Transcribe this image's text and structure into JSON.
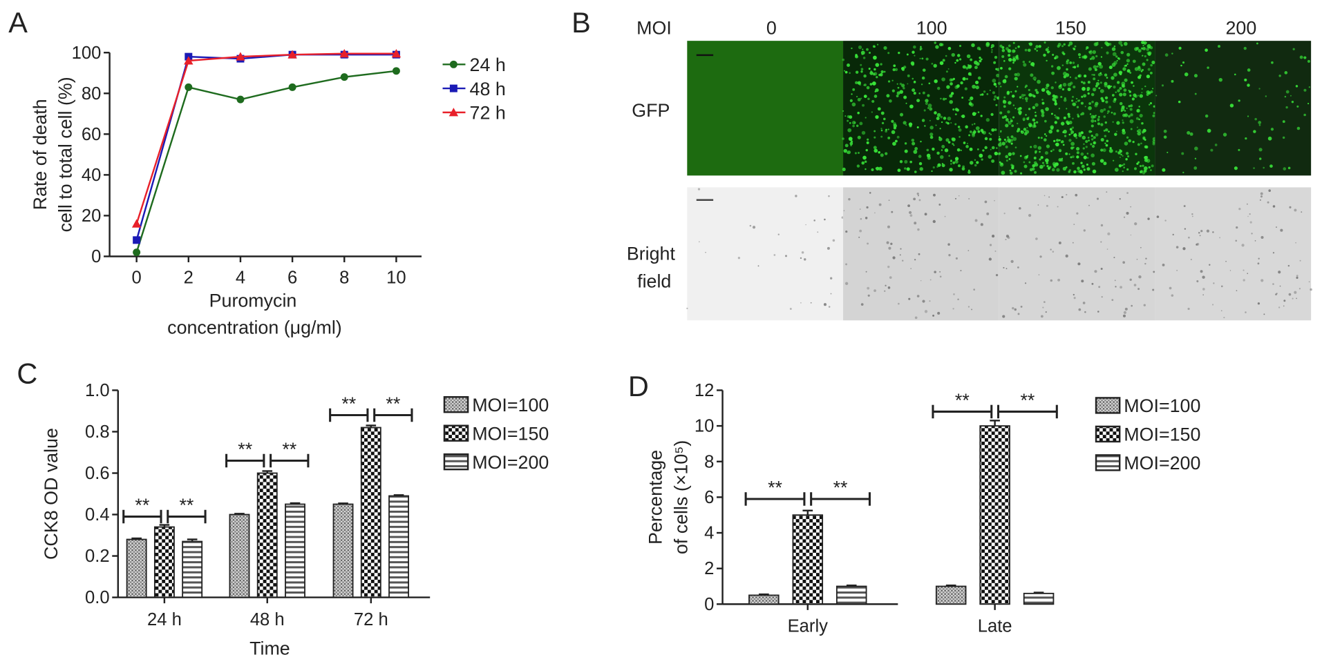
{
  "panel_labels": [
    "A",
    "B",
    "C",
    "D"
  ],
  "colors": {
    "24 h": "#1e6b1e",
    "48 h": "#1a1ab5",
    "72 h": "#e8202a",
    "gfp": "#39e639"
  },
  "panel_b": {
    "moi_label": "MOI",
    "columns": [
      "0",
      "100",
      "150",
      "200"
    ],
    "rows": [
      {
        "label_lines": [
          "GFP"
        ]
      },
      {
        "label_lines": [
          "Bright",
          "field"
        ]
      }
    ]
  },
  "chart_data": [
    {
      "type": "line",
      "panel": "A",
      "x": [
        0,
        2,
        4,
        6,
        8,
        10
      ],
      "xticks": [
        "0",
        "2",
        "4",
        "6",
        "8",
        "10"
      ],
      "yticks": [
        "0",
        "20",
        "40",
        "60",
        "80",
        "100"
      ],
      "ylim": [
        0,
        100
      ],
      "xlim": [
        -1,
        11
      ],
      "xlabel_lines": [
        "Puromycin",
        "concentration (μg/ml)"
      ],
      "ylabel_lines": [
        "Rate of death",
        "cell to total cell (%)"
      ],
      "legend_placement": "right",
      "series": [
        {
          "name": "24 h",
          "marker": "circle",
          "values": [
            2,
            83,
            77,
            83,
            88,
            91
          ]
        },
        {
          "name": "48 h",
          "marker": "square",
          "values": [
            8,
            98,
            97,
            99,
            99,
            99
          ]
        },
        {
          "name": "72 h",
          "marker": "triangle",
          "values": [
            16,
            96,
            98,
            99,
            99.5,
            99.5
          ]
        }
      ]
    },
    {
      "type": "bar",
      "panel": "C",
      "categories": [
        "24 h",
        "48 h",
        "72 h"
      ],
      "xlabel": "Time",
      "ylabel": "CCK8 OD value",
      "ylim": [
        0,
        1.0
      ],
      "yticks": [
        "0.0",
        "0.2",
        "0.4",
        "0.6",
        "0.8",
        "1.0"
      ],
      "legend_placement": "right",
      "series": [
        {
          "name": "MOI=100",
          "pattern": "dots",
          "values": [
            0.28,
            0.4,
            0.45
          ],
          "errors": [
            0.005,
            0.004,
            0.004
          ]
        },
        {
          "name": "MOI=150",
          "pattern": "checker",
          "values": [
            0.34,
            0.6,
            0.82
          ],
          "errors": [
            0.01,
            0.01,
            0.01
          ]
        },
        {
          "name": "MOI=200",
          "pattern": "stripes",
          "values": [
            0.27,
            0.45,
            0.49
          ],
          "errors": [
            0.01,
            0.005,
            0.004
          ]
        }
      ],
      "significance": [
        {
          "category": "24 h",
          "left": "**",
          "right": "**",
          "level": 0.39
        },
        {
          "category": "48 h",
          "left": "**",
          "right": "**",
          "level": 0.66
        },
        {
          "category": "72 h",
          "left": "**",
          "right": "**",
          "level": 0.88
        }
      ]
    },
    {
      "type": "bar",
      "panel": "D",
      "categories": [
        "Early",
        "Late"
      ],
      "xlabel": "",
      "ylabel_lines": [
        "Percentage",
        "of cells (×10⁵)"
      ],
      "ylim": [
        0,
        12
      ],
      "yticks": [
        "0",
        "2",
        "4",
        "6",
        "8",
        "10",
        "12"
      ],
      "legend_placement": "right",
      "series": [
        {
          "name": "MOI=100",
          "pattern": "dots",
          "values": [
            0.5,
            1.0
          ],
          "errors": [
            0.05,
            0.05
          ]
        },
        {
          "name": "MOI=150",
          "pattern": "checker",
          "values": [
            5.0,
            10.0
          ],
          "errors": [
            0.25,
            0.3
          ]
        },
        {
          "name": "MOI=200",
          "pattern": "stripes",
          "values": [
            1.0,
            0.6
          ],
          "errors": [
            0.05,
            0.05
          ]
        }
      ],
      "significance": [
        {
          "category": "Early",
          "left": "**",
          "right": "**",
          "level": 5.9
        },
        {
          "category": "Late",
          "left": "**",
          "right": "**",
          "level": 10.8
        }
      ]
    }
  ]
}
